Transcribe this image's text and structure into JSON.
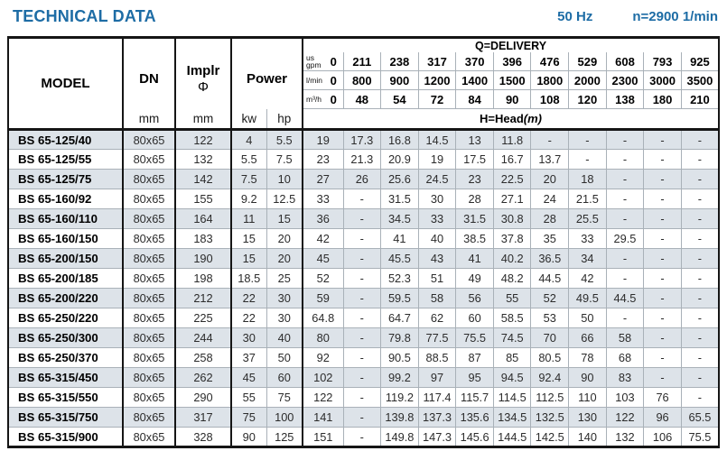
{
  "header": {
    "title": "TECHNICAL DATA",
    "frequency": "50 Hz",
    "speed": "n=2900 1/min"
  },
  "colors": {
    "accent": "#1d6ca5",
    "stripe": "#dde3e9",
    "grid_dark": "#151515",
    "grid_light": "#a9b1b8"
  },
  "table": {
    "model_header": "MODEL",
    "dn": {
      "label": "DN",
      "unit": "mm"
    },
    "impeller": {
      "label": "Implr",
      "symbol": "Φ",
      "unit": "mm"
    },
    "power": {
      "label": "Power",
      "units": [
        "kw",
        "hp"
      ]
    },
    "delivery": {
      "title": "Q=DELIVERY",
      "unit_rows": [
        {
          "unit_lines": [
            "us",
            "gpm"
          ],
          "values": [
            "0",
            "211",
            "238",
            "317",
            "370",
            "396",
            "476",
            "529",
            "608",
            "793",
            "925"
          ]
        },
        {
          "unit_lines": [
            "l/min"
          ],
          "values": [
            "0",
            "800",
            "900",
            "1200",
            "1400",
            "1500",
            "1800",
            "2000",
            "2300",
            "3000",
            "3500"
          ]
        },
        {
          "unit_lines": [
            "m³/h"
          ],
          "values": [
            "0",
            "48",
            "54",
            "72",
            "84",
            "90",
            "108",
            "120",
            "138",
            "180",
            "210"
          ]
        }
      ],
      "head_label": "H=Head",
      "head_unit": "(m)"
    },
    "rows": [
      {
        "model": "BS 65-125/40",
        "dn": "80x65",
        "impeller": "122",
        "kw": "4",
        "hp": "5.5",
        "head": [
          "19",
          "17.3",
          "16.8",
          "14.5",
          "13",
          "11.8",
          "-",
          "-",
          "-",
          "-",
          "-"
        ]
      },
      {
        "model": "BS 65-125/55",
        "dn": "80x65",
        "impeller": "132",
        "kw": "5.5",
        "hp": "7.5",
        "head": [
          "23",
          "21.3",
          "20.9",
          "19",
          "17.5",
          "16.7",
          "13.7",
          "-",
          "-",
          "-",
          "-"
        ]
      },
      {
        "model": "BS 65-125/75",
        "dn": "80x65",
        "impeller": "142",
        "kw": "7.5",
        "hp": "10",
        "head": [
          "27",
          "26",
          "25.6",
          "24.5",
          "23",
          "22.5",
          "20",
          "18",
          "-",
          "-",
          "-"
        ]
      },
      {
        "model": "BS 65-160/92",
        "dn": "80x65",
        "impeller": "155",
        "kw": "9.2",
        "hp": "12.5",
        "head": [
          "33",
          "-",
          "31.5",
          "30",
          "28",
          "27.1",
          "24",
          "21.5",
          "-",
          "-",
          "-"
        ]
      },
      {
        "model": "BS 65-160/110",
        "dn": "80x65",
        "impeller": "164",
        "kw": "11",
        "hp": "15",
        "head": [
          "36",
          "-",
          "34.5",
          "33",
          "31.5",
          "30.8",
          "28",
          "25.5",
          "-",
          "-",
          "-"
        ]
      },
      {
        "model": "BS 65-160/150",
        "dn": "80x65",
        "impeller": "183",
        "kw": "15",
        "hp": "20",
        "head": [
          "42",
          "-",
          "41",
          "40",
          "38.5",
          "37.8",
          "35",
          "33",
          "29.5",
          "-",
          "-"
        ]
      },
      {
        "model": "BS 65-200/150",
        "dn": "80x65",
        "impeller": "190",
        "kw": "15",
        "hp": "20",
        "head": [
          "45",
          "-",
          "45.5",
          "43",
          "41",
          "40.2",
          "36.5",
          "34",
          "-",
          "-",
          "-"
        ]
      },
      {
        "model": "BS 65-200/185",
        "dn": "80x65",
        "impeller": "198",
        "kw": "18.5",
        "hp": "25",
        "head": [
          "52",
          "-",
          "52.3",
          "51",
          "49",
          "48.2",
          "44.5",
          "42",
          "-",
          "-",
          "-"
        ]
      },
      {
        "model": "BS 65-200/220",
        "dn": "80x65",
        "impeller": "212",
        "kw": "22",
        "hp": "30",
        "head": [
          "59",
          "-",
          "59.5",
          "58",
          "56",
          "55",
          "52",
          "49.5",
          "44.5",
          "-",
          "-"
        ]
      },
      {
        "model": "BS 65-250/220",
        "dn": "80x65",
        "impeller": "225",
        "kw": "22",
        "hp": "30",
        "head": [
          "64.8",
          "-",
          "64.7",
          "62",
          "60",
          "58.5",
          "53",
          "50",
          "-",
          "-",
          "-"
        ]
      },
      {
        "model": "BS 65-250/300",
        "dn": "80x65",
        "impeller": "244",
        "kw": "30",
        "hp": "40",
        "head": [
          "80",
          "-",
          "79.8",
          "77.5",
          "75.5",
          "74.5",
          "70",
          "66",
          "58",
          "-",
          "-"
        ]
      },
      {
        "model": "BS 65-250/370",
        "dn": "80x65",
        "impeller": "258",
        "kw": "37",
        "hp": "50",
        "head": [
          "92",
          "-",
          "90.5",
          "88.5",
          "87",
          "85",
          "80.5",
          "78",
          "68",
          "-",
          "-"
        ]
      },
      {
        "model": "BS 65-315/450",
        "dn": "80x65",
        "impeller": "262",
        "kw": "45",
        "hp": "60",
        "head": [
          "102",
          "-",
          "99.2",
          "97",
          "95",
          "94.5",
          "92.4",
          "90",
          "83",
          "-",
          "-"
        ]
      },
      {
        "model": "BS 65-315/550",
        "dn": "80x65",
        "impeller": "290",
        "kw": "55",
        "hp": "75",
        "head": [
          "122",
          "-",
          "119.2",
          "117.4",
          "115.7",
          "114.5",
          "112.5",
          "110",
          "103",
          "76",
          "-"
        ]
      },
      {
        "model": "BS 65-315/750",
        "dn": "80x65",
        "impeller": "317",
        "kw": "75",
        "hp": "100",
        "head": [
          "141",
          "-",
          "139.8",
          "137.3",
          "135.6",
          "134.5",
          "132.5",
          "130",
          "122",
          "96",
          "65.5"
        ]
      },
      {
        "model": "BS 65-315/900",
        "dn": "80x65",
        "impeller": "328",
        "kw": "90",
        "hp": "125",
        "head": [
          "151",
          "-",
          "149.8",
          "147.3",
          "145.6",
          "144.5",
          "142.5",
          "140",
          "132",
          "106",
          "75.5"
        ]
      }
    ]
  }
}
